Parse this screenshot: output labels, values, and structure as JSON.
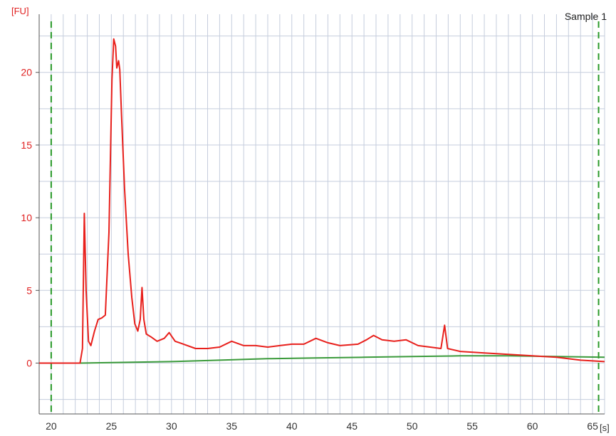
{
  "sample_label": "Sample 1",
  "chart_data": {
    "type": "line",
    "y_unit_label": "[FU]",
    "x_unit_label": "[s]",
    "xlim": [
      19,
      66
    ],
    "ylim": [
      -3.5,
      24
    ],
    "x_ticks": [
      20,
      25,
      30,
      35,
      40,
      45,
      50,
      55,
      60,
      65
    ],
    "x_tick_labels": [
      "20",
      "25",
      "30",
      "35",
      "40",
      "45",
      "50",
      "55",
      "60",
      "65"
    ],
    "y_ticks": [
      0,
      5,
      10,
      15,
      20
    ],
    "y_tick_labels": [
      "0",
      "5",
      "10",
      "15",
      "20"
    ],
    "grid": true,
    "marker_lines_x": [
      20,
      65.5
    ],
    "series": [
      {
        "color": "#e8201c",
        "points": [
          [
            19,
            0
          ],
          [
            22.4,
            0
          ],
          [
            22.6,
            1
          ],
          [
            22.75,
            10.3
          ],
          [
            22.9,
            5
          ],
          [
            23.1,
            1.5
          ],
          [
            23.3,
            1.2
          ],
          [
            23.6,
            2.2
          ],
          [
            23.9,
            3
          ],
          [
            24.2,
            3.1
          ],
          [
            24.5,
            3.3
          ],
          [
            24.8,
            9
          ],
          [
            25.05,
            19.5
          ],
          [
            25.2,
            22.3
          ],
          [
            25.35,
            21.8
          ],
          [
            25.45,
            20.3
          ],
          [
            25.6,
            20.8
          ],
          [
            25.7,
            20.2
          ],
          [
            25.85,
            17
          ],
          [
            26.1,
            12
          ],
          [
            26.4,
            7.5
          ],
          [
            26.7,
            4.5
          ],
          [
            26.95,
            2.7
          ],
          [
            27.2,
            2.2
          ],
          [
            27.4,
            3
          ],
          [
            27.55,
            5.2
          ],
          [
            27.7,
            3
          ],
          [
            27.9,
            2
          ],
          [
            28.3,
            1.8
          ],
          [
            28.8,
            1.5
          ],
          [
            29.4,
            1.7
          ],
          [
            29.8,
            2.1
          ],
          [
            30.3,
            1.5
          ],
          [
            31,
            1.3
          ],
          [
            32,
            1.0
          ],
          [
            33,
            1.0
          ],
          [
            34,
            1.1
          ],
          [
            35,
            1.5
          ],
          [
            36,
            1.2
          ],
          [
            37,
            1.2
          ],
          [
            38,
            1.1
          ],
          [
            39,
            1.2
          ],
          [
            40,
            1.3
          ],
          [
            41,
            1.3
          ],
          [
            42,
            1.7
          ],
          [
            43,
            1.4
          ],
          [
            44,
            1.2
          ],
          [
            45.5,
            1.3
          ],
          [
            46.2,
            1.6
          ],
          [
            46.8,
            1.9
          ],
          [
            47.5,
            1.6
          ],
          [
            48.5,
            1.5
          ],
          [
            49.5,
            1.6
          ],
          [
            50.5,
            1.2
          ],
          [
            51.5,
            1.1
          ],
          [
            52.4,
            1.0
          ],
          [
            52.7,
            2.6
          ],
          [
            52.95,
            1.0
          ],
          [
            54,
            0.8
          ],
          [
            56,
            0.7
          ],
          [
            58,
            0.6
          ],
          [
            60,
            0.5
          ],
          [
            62,
            0.4
          ],
          [
            64,
            0.2
          ],
          [
            66,
            0.1
          ]
        ]
      },
      {
        "color": "#3a9a3a",
        "points": [
          [
            19,
            0
          ],
          [
            22.4,
            0
          ],
          [
            26,
            0.05
          ],
          [
            30,
            0.1
          ],
          [
            34,
            0.2
          ],
          [
            38,
            0.3
          ],
          [
            42,
            0.35
          ],
          [
            46,
            0.4
          ],
          [
            50,
            0.45
          ],
          [
            54,
            0.5
          ],
          [
            58,
            0.5
          ],
          [
            62,
            0.45
          ],
          [
            66,
            0.4
          ]
        ]
      }
    ]
  }
}
